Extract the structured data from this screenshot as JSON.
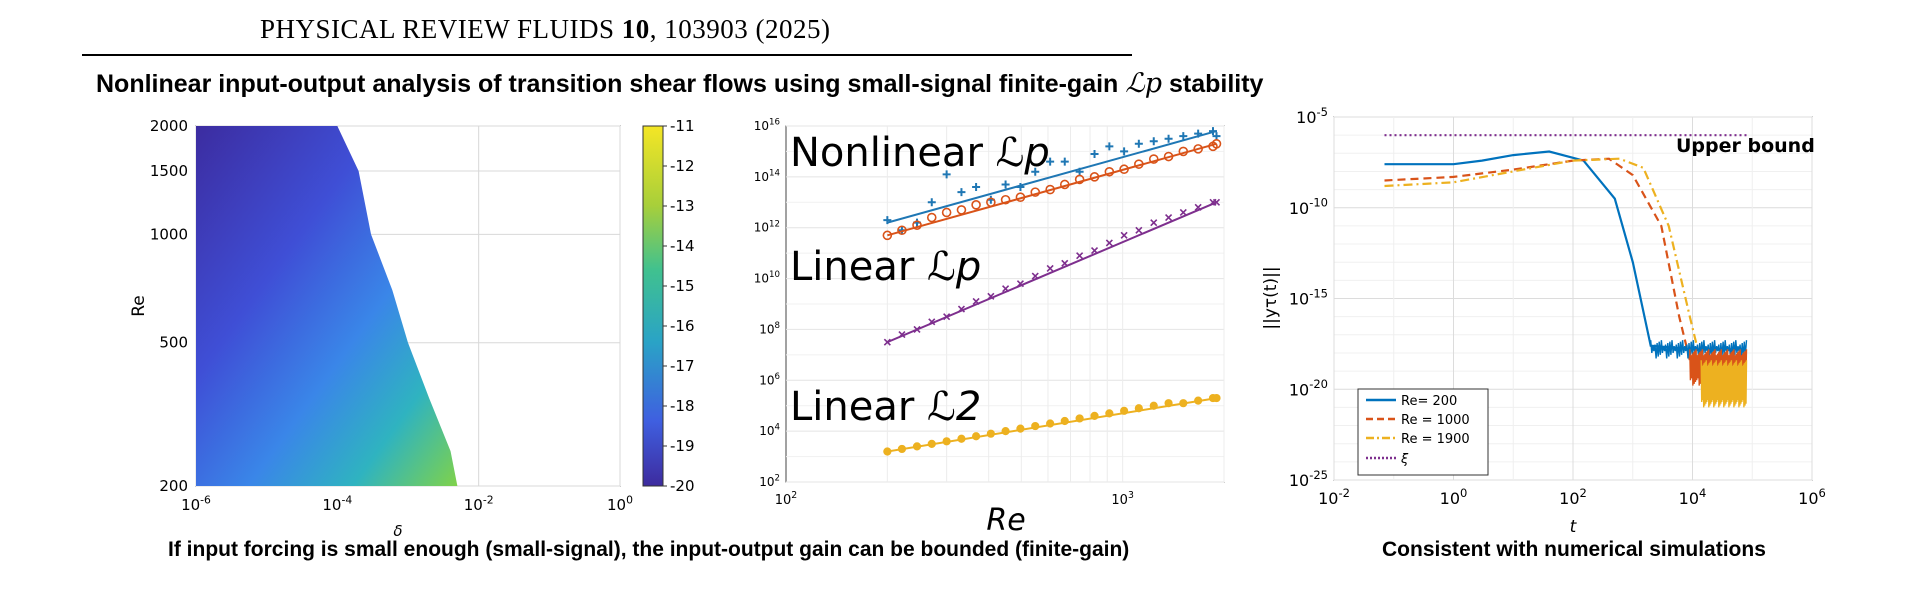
{
  "header": {
    "journal_name": "PHYSICAL REVIEW FLUIDS",
    "volume": "10",
    "citation": ", 103903 (2025)"
  },
  "headline": {
    "text": "Nonlinear input-output analysis of transition shear flows using small-signal finite-gain",
    "math": "ℒp",
    "suffix": "stability"
  },
  "captions": {
    "left": "If input forcing is small enough (small-signal), the input-output gain can be bounded (finite-gain)",
    "right": "Consistent with numerical simulations"
  },
  "chart_data": [
    {
      "type": "heatmap",
      "xlabel": "δ",
      "ylabel": "Re",
      "x_scale": "log",
      "y_scale": "log",
      "xlim": [
        1e-06,
        1
      ],
      "ylim": [
        200,
        2000
      ],
      "x_ticks": [
        "10-6",
        "10-4",
        "10-2",
        "100"
      ],
      "y_ticks": [
        "200",
        "500",
        "1000",
        "1500",
        "2000"
      ],
      "colorbar": {
        "min": -20,
        "max": -11,
        "ticks": [
          "-11",
          "-12",
          "-13",
          "-14",
          "-15",
          "-16",
          "-17",
          "-18",
          "-19",
          "-20"
        ]
      },
      "grid": true,
      "boundary": [
        {
          "Re": 2000,
          "delta_max": 0.0001
        },
        {
          "Re": 1500,
          "delta_max": 0.0002
        },
        {
          "Re": 1000,
          "delta_max": 0.0003
        },
        {
          "Re": 700,
          "delta_max": 0.0006
        },
        {
          "Re": 500,
          "delta_max": 0.001
        },
        {
          "Re": 350,
          "delta_max": 0.002
        },
        {
          "Re": 250,
          "delta_max": 0.004
        },
        {
          "Re": 200,
          "delta_max": 0.005
        }
      ],
      "colors": {
        "low": "#3d2b9e",
        "mid": "#2aa3c6",
        "high": "#7fd24a",
        "top": "#f4e625"
      }
    },
    {
      "type": "scatter",
      "xlabel": "Re",
      "x_scale": "log",
      "y_scale": "log",
      "xlim": [
        100,
        2000
      ],
      "ylim": [
        100,
        1e+16
      ],
      "x_ticks": [
        "102",
        "103"
      ],
      "y_ticks": [
        "102",
        "104",
        "106",
        "108",
        "1010",
        "1012",
        "1014",
        "1016"
      ],
      "annotations": [
        {
          "text": "Nonlinear",
          "math": "ℒp"
        },
        {
          "text": "Linear",
          "math": "ℒp"
        },
        {
          "text": "Linear",
          "math": "ℒ2"
        }
      ],
      "Re": [
        200,
        221,
        245,
        271,
        300,
        332,
        367,
        406,
        449,
        497,
        550,
        609,
        673,
        745,
        825,
        913,
        1010,
        1117,
        1237,
        1369,
        1514,
        1676,
        1855,
        1900
      ],
      "series": [
        {
          "marker": "plus",
          "color": "#1f77b4",
          "log10_fit": [
            12.2,
            15.8
          ],
          "log10_values": [
            12.3,
            11.9,
            12.2,
            13.0,
            14.1,
            13.4,
            13.6,
            13.1,
            13.7,
            13.6,
            14.2,
            14.6,
            14.6,
            14.2,
            14.9,
            15.2,
            15.0,
            15.3,
            15.4,
            15.5,
            15.6,
            15.7,
            15.8,
            15.6
          ]
        },
        {
          "marker": "circle",
          "color": "#d95319",
          "log10_fit": [
            11.7,
            15.3
          ],
          "log10_values": [
            11.7,
            11.9,
            12.1,
            12.4,
            12.6,
            12.7,
            12.9,
            13.0,
            13.1,
            13.2,
            13.4,
            13.5,
            13.7,
            13.9,
            14.0,
            14.2,
            14.3,
            14.5,
            14.7,
            14.8,
            15.0,
            15.1,
            15.2,
            15.3
          ]
        },
        {
          "marker": "x",
          "color": "#7e2f8e",
          "log10_fit": [
            7.5,
            13.0
          ],
          "log10_values": [
            7.5,
            7.8,
            8.0,
            8.3,
            8.5,
            8.8,
            9.1,
            9.3,
            9.6,
            9.8,
            10.1,
            10.4,
            10.6,
            10.9,
            11.1,
            11.4,
            11.7,
            11.9,
            12.2,
            12.4,
            12.6,
            12.8,
            13.0,
            13.0
          ]
        },
        {
          "marker": "dot",
          "color": "#edb120",
          "log10_fit": [
            3.2,
            5.3
          ],
          "log10_values": [
            3.2,
            3.3,
            3.4,
            3.5,
            3.6,
            3.7,
            3.8,
            3.9,
            4.0,
            4.1,
            4.2,
            4.3,
            4.4,
            4.5,
            4.6,
            4.7,
            4.8,
            4.9,
            5.0,
            5.1,
            5.1,
            5.2,
            5.3,
            5.3
          ]
        }
      ]
    },
    {
      "type": "line",
      "xlabel": "t",
      "ylabel": "||yτ(t)||",
      "x_scale": "log",
      "y_scale": "log",
      "xlim": [
        0.01,
        1000000
      ],
      "ylim": [
        1e-25,
        1e-05
      ],
      "x_ticks": [
        "10-2",
        "100",
        "102",
        "104",
        "106"
      ],
      "y_ticks": [
        "10-5",
        "10-10",
        "10-15",
        "10-20",
        "10-25"
      ],
      "grid": true,
      "annotation": "Upper bound",
      "legend": {
        "placement": "bottom-left"
      },
      "series": [
        {
          "name": "Re= 200",
          "color": "#0072bd",
          "style": "solid",
          "points": [
            [
              0.07,
              -7.6
            ],
            [
              1,
              -7.6
            ],
            [
              3,
              -7.4
            ],
            [
              10,
              -7.1
            ],
            [
              40,
              -6.9
            ],
            [
              150,
              -7.4
            ],
            [
              500,
              -9.5
            ],
            [
              1000,
              -13.0
            ],
            [
              2000,
              -17.6
            ],
            [
              10000,
              -17.8
            ],
            [
              80000,
              -17.8
            ]
          ]
        },
        {
          "name": "Re = 1000",
          "color": "#d95319",
          "style": "dashed",
          "points": [
            [
              0.07,
              -8.5
            ],
            [
              1,
              -8.3
            ],
            [
              10,
              -7.9
            ],
            [
              100,
              -7.4
            ],
            [
              400,
              -7.3
            ],
            [
              1000,
              -8.2
            ],
            [
              3000,
              -11.0
            ],
            [
              6000,
              -16.0
            ],
            [
              10000,
              -19.0
            ],
            [
              80000,
              -18.7
            ]
          ]
        },
        {
          "name": "Re = 1900",
          "color": "#edb120",
          "style": "dashdot",
          "points": [
            [
              0.07,
              -8.8
            ],
            [
              1,
              -8.6
            ],
            [
              10,
              -8.0
            ],
            [
              100,
              -7.4
            ],
            [
              600,
              -7.3
            ],
            [
              1500,
              -7.8
            ],
            [
              4000,
              -11.0
            ],
            [
              9000,
              -16.0
            ],
            [
              15000,
              -19.0
            ],
            [
              80000,
              -19.5
            ]
          ]
        },
        {
          "name": "ξ",
          "color": "#7e2f8e",
          "style": "dotted",
          "points": [
            [
              0.07,
              -6.0
            ],
            [
              80000,
              -6.0
            ]
          ]
        }
      ]
    }
  ]
}
